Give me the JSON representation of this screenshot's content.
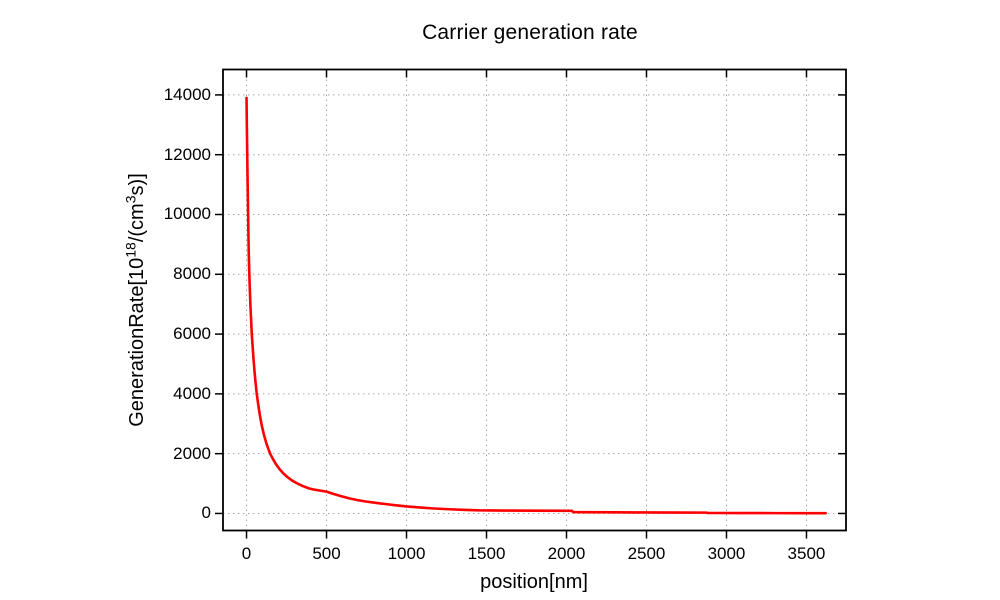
{
  "window": {
    "background_color": "#ffffff"
  },
  "chart_data": {
    "type": "line",
    "title": "Carrier generation rate",
    "xlabel": "position[nm]",
    "ylabel": "GenerationRate[10¹⁸/(cm³s)]",
    "ylabel_parts": {
      "prefix": "GenerationRate[10",
      "sup1": "18",
      "mid": "/(cm",
      "sup2": "3",
      "suffix": "s)]"
    },
    "xlim": [
      -147,
      3747
    ],
    "ylim": [
      -570,
      14850
    ],
    "xticks": [
      0,
      500,
      1000,
      1500,
      2000,
      2500,
      3000,
      3500
    ],
    "yticks": [
      0,
      2000,
      4000,
      6000,
      8000,
      10000,
      12000,
      14000
    ],
    "grid": true,
    "grid_style": "dotted",
    "legend": false,
    "colors": {
      "curve": "#ff0000",
      "grid": "#a8a8a8",
      "axis": "#000000"
    },
    "series": [
      {
        "name": "generation-rate",
        "color": "#ff0000",
        "points": [
          [
            0,
            13900
          ],
          [
            2,
            13000
          ],
          [
            4,
            12200
          ],
          [
            6,
            11400
          ],
          [
            8,
            10700
          ],
          [
            10,
            10000
          ],
          [
            12,
            9300
          ],
          [
            14,
            8700
          ],
          [
            17,
            8100
          ],
          [
            20,
            7600
          ],
          [
            24,
            7000
          ],
          [
            28,
            6550
          ],
          [
            33,
            6000
          ],
          [
            38,
            5600
          ],
          [
            44,
            5150
          ],
          [
            50,
            4750
          ],
          [
            57,
            4350
          ],
          [
            64,
            4000
          ],
          [
            73,
            3650
          ],
          [
            83,
            3300
          ],
          [
            95,
            2950
          ],
          [
            108,
            2650
          ],
          [
            122,
            2380
          ],
          [
            135,
            2180
          ],
          [
            148,
            2000
          ],
          [
            165,
            1820
          ],
          [
            185,
            1640
          ],
          [
            205,
            1490
          ],
          [
            230,
            1340
          ],
          [
            255,
            1220
          ],
          [
            285,
            1100
          ],
          [
            315,
            1010
          ],
          [
            350,
            920
          ],
          [
            390,
            840
          ],
          [
            430,
            790
          ],
          [
            465,
            760
          ],
          [
            500,
            730
          ],
          [
            545,
            650
          ],
          [
            590,
            580
          ],
          [
            640,
            510
          ],
          [
            690,
            450
          ],
          [
            740,
            405
          ],
          [
            800,
            360
          ],
          [
            860,
            320
          ],
          [
            920,
            280
          ],
          [
            1000,
            235
          ],
          [
            1080,
            200
          ],
          [
            1160,
            170
          ],
          [
            1250,
            145
          ],
          [
            1350,
            122
          ],
          [
            1450,
            105
          ],
          [
            1600,
            98
          ],
          [
            1800,
            92
          ],
          [
            2035,
            88
          ],
          [
            2040,
            45
          ],
          [
            2100,
            42
          ],
          [
            2300,
            38
          ],
          [
            2500,
            34
          ],
          [
            2700,
            30
          ],
          [
            2875,
            28
          ],
          [
            2880,
            16
          ],
          [
            2950,
            15
          ],
          [
            3100,
            13
          ],
          [
            3300,
            11
          ],
          [
            3500,
            10
          ],
          [
            3620,
            10
          ]
        ]
      }
    ]
  }
}
